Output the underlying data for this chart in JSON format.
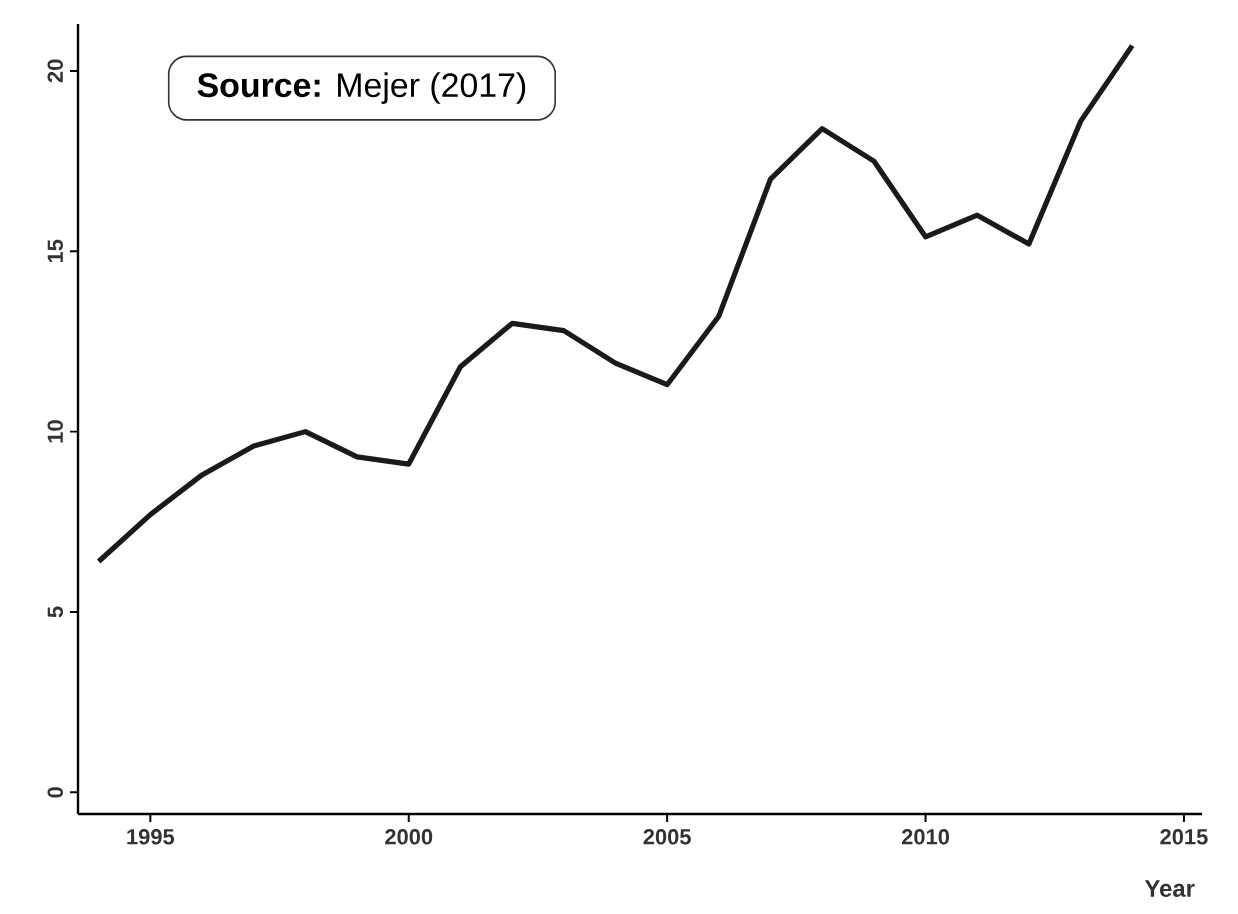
{
  "chart_data": {
    "type": "line",
    "xlabel": "Year",
    "annotations": [
      "**Source:** Mejer (2017)"
    ],
    "x": [
      1994,
      1995,
      1996,
      1997,
      1998,
      1999,
      2000,
      2001,
      2002,
      2003,
      2004,
      2005,
      2006,
      2007,
      2008,
      2009,
      2010,
      2011,
      2012,
      2013,
      2014
    ],
    "series": [
      {
        "color": "#1a1a1a",
        "values": [
          6.4,
          7.7,
          8.8,
          9.6,
          10.0,
          9.3,
          9.1,
          11.8,
          13.0,
          12.8,
          11.9,
          11.3,
          13.2,
          17.0,
          18.4,
          17.5,
          15.4,
          16.0,
          15.2,
          18.6,
          20.7
        ]
      }
    ],
    "xlim": [
      1993.6,
      2015.35
    ],
    "ylim": [
      -0.6,
      21.3
    ],
    "xticks": [
      1995,
      2000,
      2005,
      2010,
      2015
    ],
    "yticks": [
      0,
      5,
      10,
      15,
      20
    ],
    "grid": false,
    "legend": false,
    "marker": "none",
    "line_style": "solid"
  }
}
